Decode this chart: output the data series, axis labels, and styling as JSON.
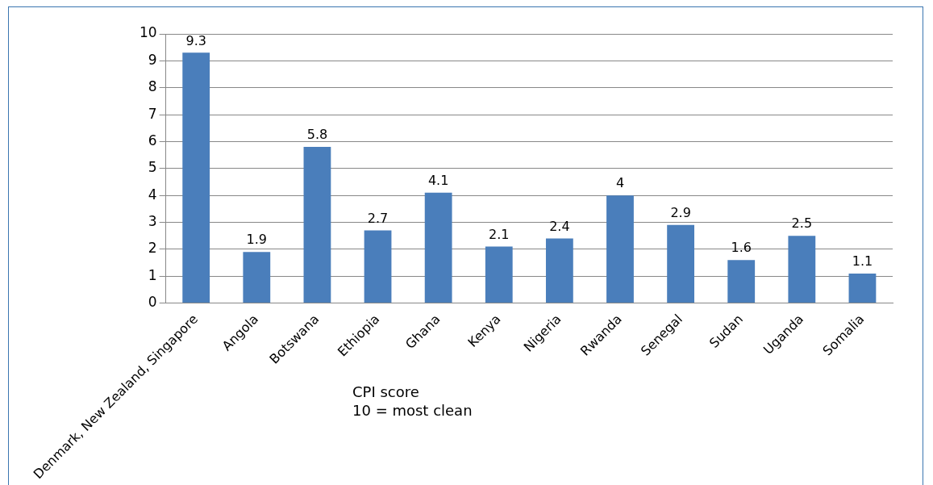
{
  "chart_data": {
    "type": "bar",
    "categories": [
      "Denmark, New Zealand, Singapore",
      "Angola",
      "Botswana",
      "Ethiopia",
      "Ghana",
      "Kenya",
      "Nigeria",
      "Rwanda",
      "Senegal",
      "Sudan",
      "Uganda",
      "Somalia"
    ],
    "values": [
      9.3,
      1.9,
      5.8,
      2.7,
      4.1,
      2.1,
      2.4,
      4,
      2.9,
      1.6,
      2.5,
      1.1
    ],
    "color": "#4a7ebb",
    "ylim": [
      0,
      10
    ],
    "yticks": [
      0,
      1,
      2,
      3,
      4,
      5,
      6,
      7,
      8,
      9,
      10
    ],
    "grid": "y",
    "legend": false,
    "data_labels": true,
    "annotations": [
      "CPI score",
      "10 = most clean"
    ]
  }
}
